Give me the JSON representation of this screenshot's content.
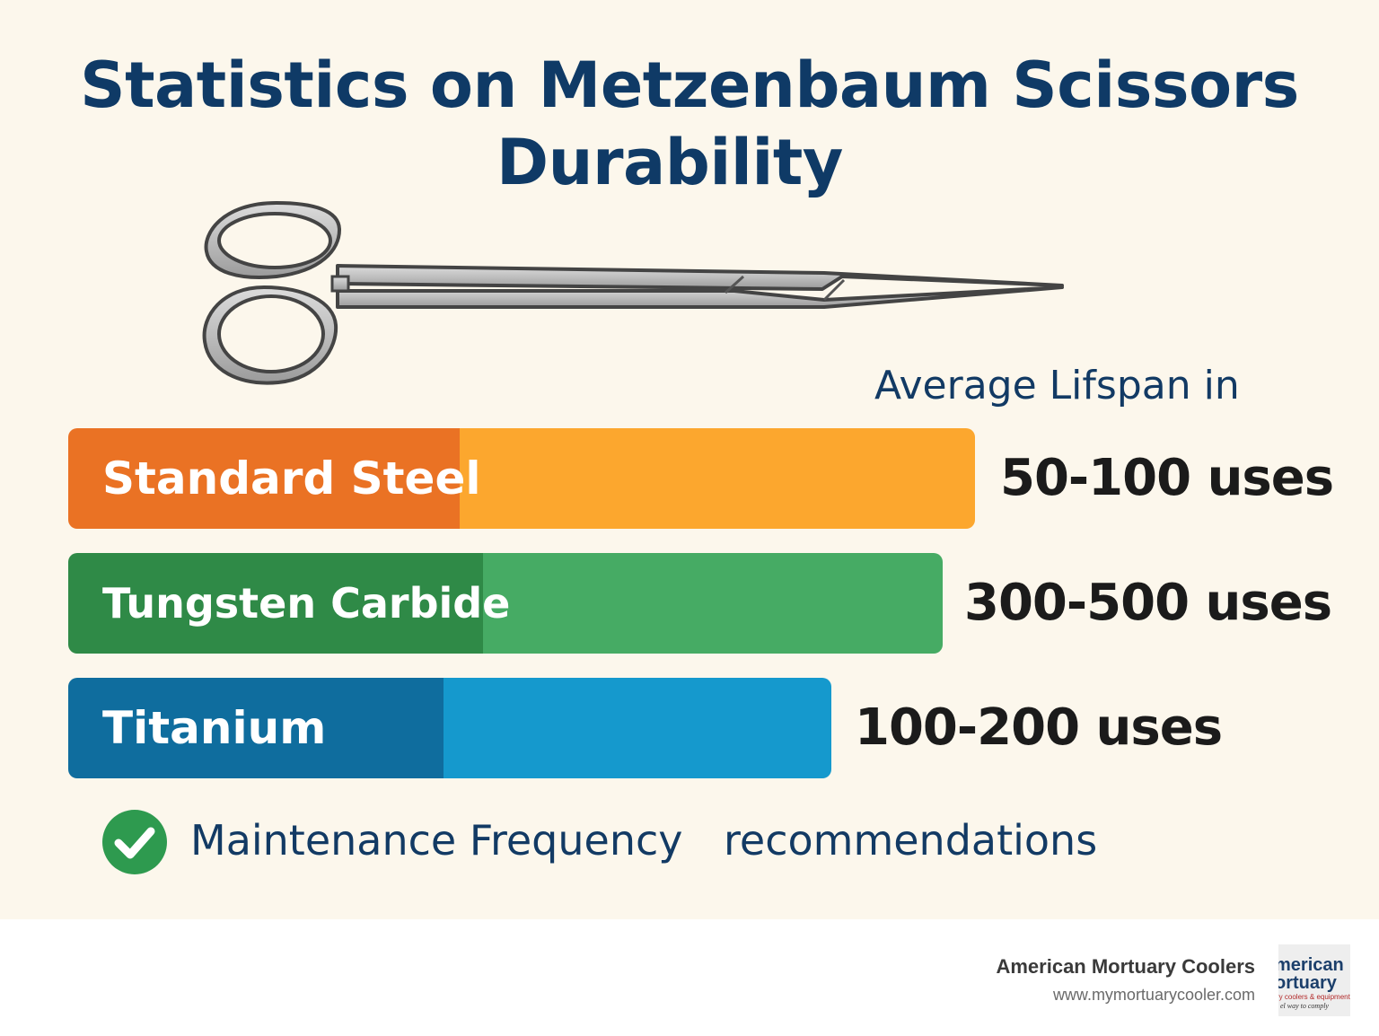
{
  "chart_data": {
    "type": "bar",
    "orientation": "horizontal",
    "title": "Statistics on Metzenbaum Scissors Durability",
    "title_lines": [
      "Statistics on Metzenbaum Scissors",
      "Durability"
    ],
    "value_axis_label": "Average Lifspan in",
    "categories": [
      "Standard Steel",
      "Tungsten Carbide",
      "Titanium"
    ],
    "value_labels": [
      "50-100 uses",
      "300-500 uses",
      "100-200 uses"
    ],
    "ranges": [
      [
        50,
        100
      ],
      [
        300,
        500
      ],
      [
        100,
        200
      ]
    ],
    "colors": [
      {
        "dark": "#ea7224",
        "light": "#fca72e"
      },
      {
        "dark": "#2f8a47",
        "light": "#46ab64"
      },
      {
        "dark": "#0f6d9e",
        "light": "#1599cd"
      }
    ],
    "footnote": [
      "Maintenance Frequency",
      "recommendations"
    ]
  },
  "branding": {
    "name": "American Mortuary Coolers",
    "url": "www.mymortuarycooler.com",
    "logo_lines": [
      "merican",
      "ortuary",
      "ry coolers & equipment",
      "el way to comply"
    ]
  }
}
